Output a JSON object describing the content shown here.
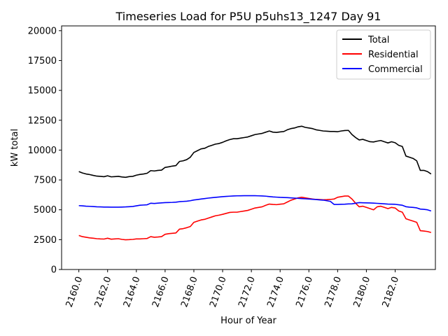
{
  "chart_data": {
    "type": "line",
    "title": "Timeseries Load for P5U p5uhs13_1247  Day 91",
    "xlabel": "Hour of Year",
    "ylabel": "kW total",
    "xlim": [
      2158.8,
      2184.8
    ],
    "ylim": [
      0,
      20400
    ],
    "x_ticks": [
      2160,
      2162,
      2164,
      2166,
      2168,
      2170,
      2172,
      2174,
      2176,
      2178,
      2180,
      2182
    ],
    "x_tick_labels": [
      "2160.0",
      "2162.0",
      "2164.0",
      "2166.0",
      "2168.0",
      "2170.0",
      "2172.0",
      "2174.0",
      "2176.0",
      "2178.0",
      "2180.0",
      "2182.0"
    ],
    "y_ticks": [
      0,
      2500,
      5000,
      7500,
      10000,
      12500,
      15000,
      17500,
      20000
    ],
    "y_tick_labels": [
      "0",
      "2500",
      "5000",
      "7500",
      "10000",
      "12500",
      "15000",
      "17500",
      "20000"
    ],
    "grid": false,
    "legend_position": "top-right",
    "x_start": 2160,
    "x_step": 0.25,
    "series": [
      {
        "name": "Total",
        "color": "#000000",
        "values": [
          8200,
          8080,
          8000,
          7950,
          7880,
          7820,
          7800,
          7770,
          7850,
          7760,
          7780,
          7800,
          7750,
          7720,
          7780,
          7800,
          7900,
          7960,
          8000,
          8060,
          8280,
          8250,
          8300,
          8320,
          8550,
          8600,
          8660,
          8700,
          9050,
          9100,
          9200,
          9400,
          9800,
          9950,
          10100,
          10150,
          10300,
          10400,
          10500,
          10550,
          10650,
          10780,
          10880,
          10950,
          10950,
          11000,
          11050,
          11100,
          11200,
          11300,
          11350,
          11400,
          11500,
          11600,
          11500,
          11480,
          11520,
          11550,
          11700,
          11800,
          11850,
          11950,
          12000,
          11900,
          11850,
          11800,
          11700,
          11650,
          11600,
          11580,
          11560,
          11560,
          11540,
          11600,
          11640,
          11650,
          11300,
          11050,
          10850,
          10900,
          10800,
          10700,
          10680,
          10750,
          10800,
          10700,
          10600,
          10700,
          10620,
          10400,
          10300,
          9500,
          9400,
          9300,
          9100,
          8300,
          8300,
          8200,
          8000
        ]
      },
      {
        "name": "Residential",
        "color": "#ff0000",
        "values": [
          2850,
          2750,
          2700,
          2650,
          2620,
          2580,
          2560,
          2550,
          2620,
          2540,
          2560,
          2580,
          2520,
          2490,
          2500,
          2520,
          2560,
          2560,
          2580,
          2600,
          2750,
          2700,
          2720,
          2750,
          2950,
          3000,
          3030,
          3060,
          3380,
          3420,
          3500,
          3600,
          3950,
          4050,
          4150,
          4200,
          4300,
          4400,
          4500,
          4550,
          4620,
          4700,
          4780,
          4800,
          4800,
          4850,
          4900,
          4950,
          5050,
          5150,
          5200,
          5250,
          5380,
          5480,
          5450,
          5430,
          5470,
          5500,
          5650,
          5800,
          5900,
          6000,
          6050,
          6000,
          5950,
          5900,
          5870,
          5860,
          5840,
          5850,
          5870,
          5900,
          6050,
          6100,
          6150,
          6150,
          5900,
          5550,
          5250,
          5300,
          5200,
          5100,
          5000,
          5250,
          5300,
          5200,
          5100,
          5200,
          5150,
          4900,
          4800,
          4250,
          4150,
          4050,
          3950,
          3250,
          3220,
          3180,
          3100
        ]
      },
      {
        "name": "Commercial",
        "color": "#0000ff",
        "values": [
          5350,
          5330,
          5300,
          5290,
          5270,
          5250,
          5240,
          5230,
          5230,
          5220,
          5220,
          5220,
          5230,
          5240,
          5260,
          5280,
          5330,
          5380,
          5400,
          5420,
          5550,
          5530,
          5560,
          5580,
          5600,
          5610,
          5620,
          5640,
          5680,
          5700,
          5720,
          5760,
          5820,
          5860,
          5900,
          5940,
          5980,
          6010,
          6040,
          6070,
          6100,
          6120,
          6140,
          6160,
          6170,
          6175,
          6180,
          6180,
          6180,
          6180,
          6170,
          6160,
          6140,
          6110,
          6080,
          6060,
          6040,
          6030,
          6020,
          6000,
          5980,
          5960,
          5940,
          5920,
          5900,
          5880,
          5860,
          5830,
          5810,
          5760,
          5700,
          5450,
          5450,
          5460,
          5470,
          5490,
          5500,
          5550,
          5600,
          5590,
          5580,
          5570,
          5560,
          5540,
          5520,
          5500,
          5480,
          5470,
          5460,
          5420,
          5380,
          5260,
          5220,
          5200,
          5160,
          5060,
          5040,
          5000,
          4900
        ]
      }
    ]
  }
}
